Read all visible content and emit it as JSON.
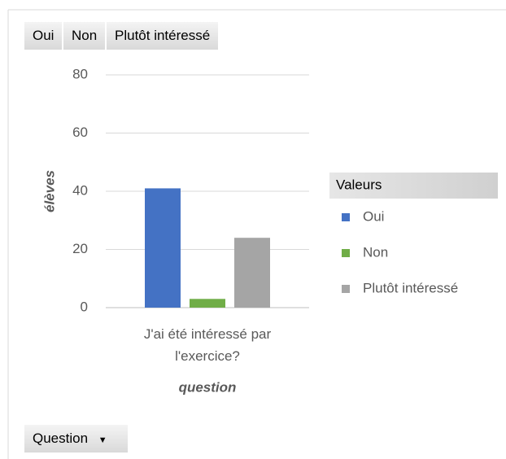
{
  "chart_data": {
    "type": "bar",
    "categories": [
      "J'ai été intéressé par l'exercice?"
    ],
    "series": [
      {
        "name": "Oui",
        "color": "#4472c4",
        "values": [
          41
        ]
      },
      {
        "name": "Non",
        "color": "#70ad47",
        "values": [
          3
        ]
      },
      {
        "name": "Plutôt intéressé",
        "color": "#a5a5a5",
        "values": [
          24
        ]
      }
    ],
    "ylim": [
      0,
      80
    ],
    "yticks": [
      0,
      20,
      40,
      60,
      80
    ],
    "grid": true,
    "x_label": "question",
    "y_label": "élèves",
    "legend_title": "Valeurs",
    "legend": "right",
    "filter_button": "Question"
  }
}
